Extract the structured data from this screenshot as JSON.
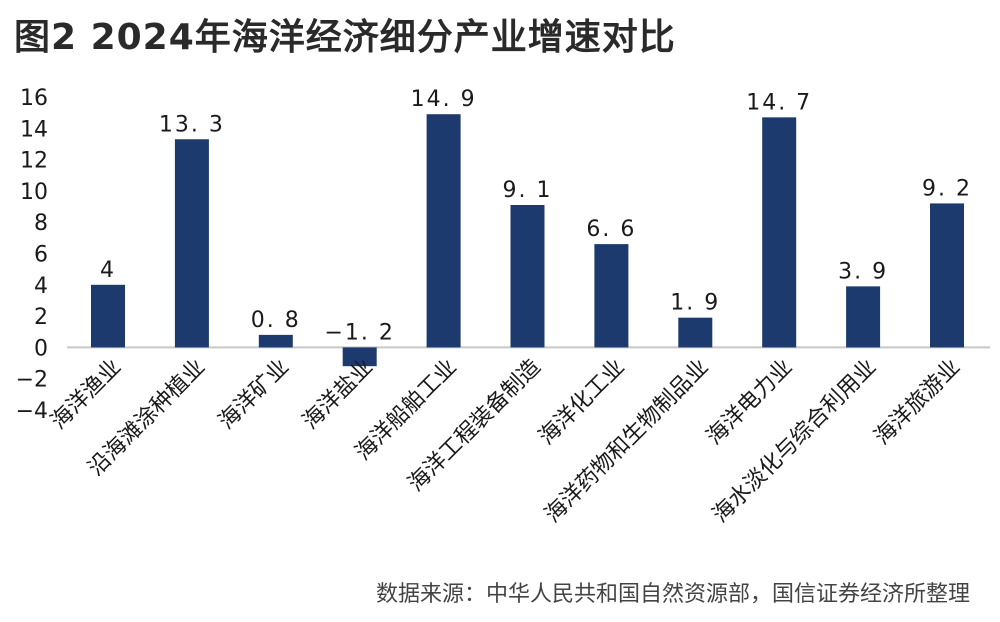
{
  "title": "图2  2024年海洋经济细分产业增速对比",
  "source": "数据来源：中华人民共和国自然资源部，国信证券经济所整理",
  "colors": {
    "bar": "#1c3a6e",
    "axis": "#c8c8c8",
    "text": "#1a1a1a"
  },
  "chart_data": {
    "type": "bar",
    "title": "图2  2024年海洋经济细分产业增速对比",
    "xlabel": "",
    "ylabel": "",
    "ylim": [
      -4,
      16
    ],
    "yticks": [
      16,
      14,
      12,
      10,
      8,
      6,
      4,
      2,
      0,
      -2,
      -4
    ],
    "grid": false,
    "legend": null,
    "categories": [
      "海洋渔业",
      "沿海滩涂种植业",
      "海洋矿业",
      "海洋盐业",
      "海洋船舶工业",
      "海洋工程装备制造",
      "海洋化工业",
      "海洋药物和生物制品业",
      "海洋电力业",
      "海水淡化与综合利用业",
      "海洋旅游业"
    ],
    "values": [
      4,
      13.3,
      0.8,
      -1.2,
      14.9,
      9.1,
      6.6,
      1.9,
      14.7,
      3.9,
      9.2
    ],
    "value_labels": [
      "4",
      "13. 3",
      "0. 8",
      "−1. 2",
      "14. 9",
      "9. 1",
      "6. 6",
      "1. 9",
      "14. 7",
      "3. 9",
      "9. 2"
    ]
  }
}
